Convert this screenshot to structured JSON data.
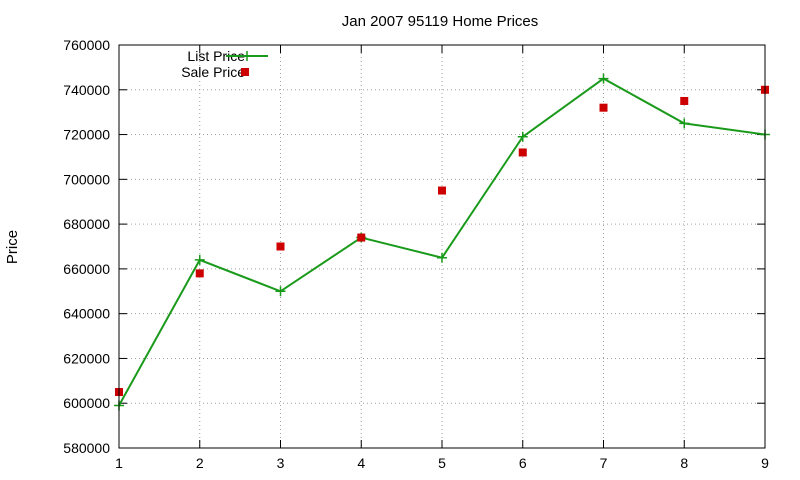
{
  "chart_data": {
    "type": "line",
    "title": "Jan 2007 95119 Home Prices",
    "xlabel": "",
    "ylabel": "Price",
    "x": [
      1,
      2,
      3,
      4,
      5,
      6,
      7,
      8,
      9
    ],
    "xlim": [
      1,
      9
    ],
    "ylim": [
      580000,
      760000
    ],
    "xticks": [
      "1",
      "2",
      "3",
      "4",
      "5",
      "6",
      "7",
      "8",
      "9"
    ],
    "yticks": [
      "580000",
      "600000",
      "620000",
      "640000",
      "660000",
      "680000",
      "700000",
      "720000",
      "740000",
      "760000"
    ],
    "grid": true,
    "legend_position": "top-left",
    "series": [
      {
        "name": "List Price",
        "style": "line-with-plus-markers",
        "color": "#1a9a1a",
        "values": [
          599000,
          664000,
          650000,
          674000,
          665000,
          719000,
          745000,
          725000,
          720000
        ]
      },
      {
        "name": "Sale Price",
        "style": "square-markers",
        "color": "#cc0000",
        "values": [
          605000,
          658000,
          670000,
          674000,
          695000,
          712000,
          732000,
          735000,
          740000
        ]
      }
    ]
  }
}
